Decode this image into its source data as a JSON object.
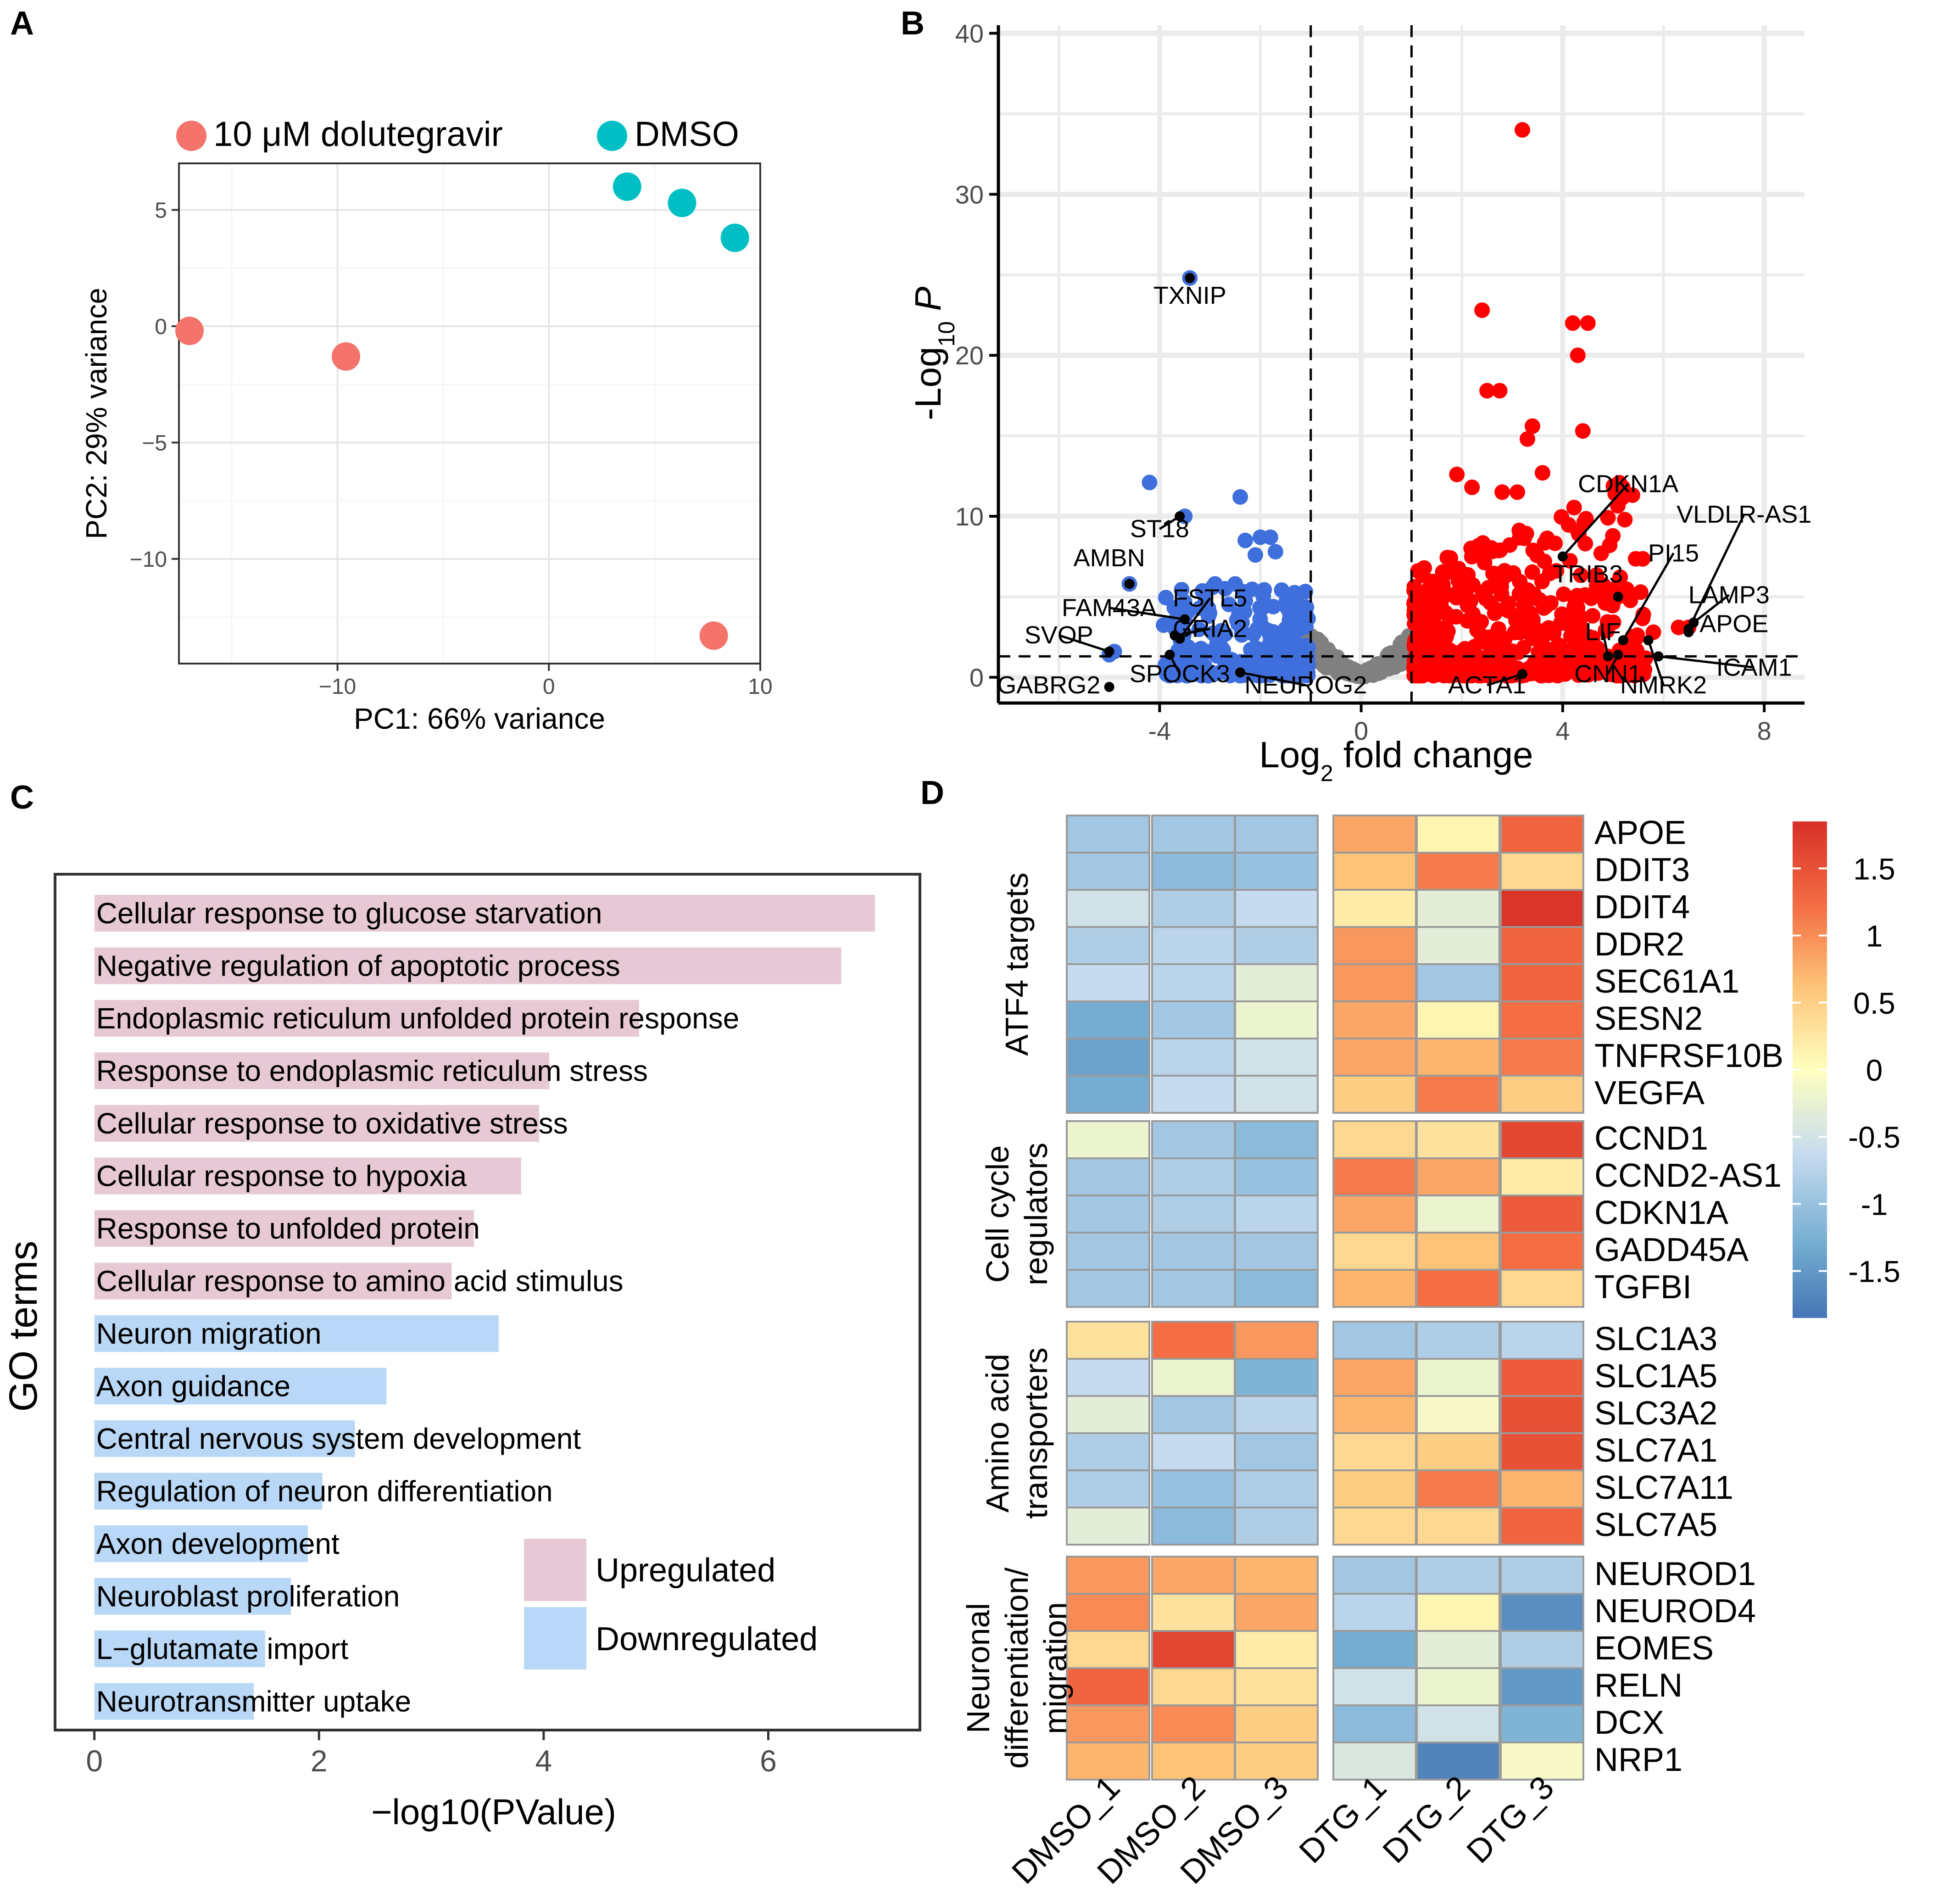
{
  "panel_labels": {
    "a": "A",
    "b": "B",
    "c": "C",
    "d": "D"
  },
  "colors": {
    "dtg": "#f4736a",
    "dmso": "#00bfc4",
    "up_point": "#ff0000",
    "down_point": "#3f6fdc",
    "ns_point": "#808080",
    "upregulated_bar": "#e6c9d4",
    "downregulated_bar": "#b9d7f6",
    "grid": "#ebebeb",
    "heat_low": "#4575b4",
    "heat_mid": "#ffffbf",
    "heat_high": "#d73027"
  },
  "chart_data": [
    {
      "panel": "A",
      "type": "scatter",
      "title": "",
      "xlabel": "PC1: 66% variance",
      "ylabel": "PC2: 29% variance",
      "xlim": [
        -17.5,
        10
      ],
      "ylim": [
        -14.5,
        7
      ],
      "xticks": [
        -10,
        0,
        10
      ],
      "yticks": [
        5,
        0,
        -5,
        -10
      ],
      "tick_labels_x": [
        "−10",
        "0",
        "10"
      ],
      "tick_labels_y": [
        "5",
        "0",
        "−5",
        "−10"
      ],
      "legend": [
        "10 μM dolutegravir",
        "DMSO"
      ],
      "legend_position": "top",
      "series": [
        {
          "name": "10 μM dolutegravir",
          "points": [
            [
              -17,
              -0.2
            ],
            [
              -9.6,
              -1.3
            ],
            [
              7.8,
              -13.3
            ]
          ]
        },
        {
          "name": "DMSO",
          "points": [
            [
              3.7,
              6
            ],
            [
              6.3,
              5.3
            ],
            [
              8.8,
              3.8
            ]
          ]
        }
      ]
    },
    {
      "panel": "B",
      "type": "scatter",
      "title": "",
      "xlabel_parts": [
        "Log",
        "2",
        " fold change"
      ],
      "ylabel_parts": [
        "-Log",
        "10",
        " P"
      ],
      "xlim": [
        -7.2,
        8.8
      ],
      "ylim": [
        -1.6,
        40.5
      ],
      "xticks": [
        -4,
        0,
        4,
        8
      ],
      "yticks": [
        0,
        10,
        20,
        30,
        40
      ],
      "tick_labels_x": [
        "-4",
        "0",
        "4",
        "8"
      ],
      "tick_labels_y": [
        "0",
        "10",
        "20",
        "30",
        "40"
      ],
      "fc_cutoff": [
        -1,
        1
      ],
      "p_cutoff": 1.3,
      "grid": true,
      "highlighted_up": [
        [
          3.2,
          34
        ],
        [
          2.4,
          22.8
        ],
        [
          4.2,
          22
        ],
        [
          4.5,
          22
        ],
        [
          4.3,
          20
        ],
        [
          2.5,
          17.8
        ],
        [
          2.75,
          17.8
        ],
        [
          3.4,
          15.6
        ],
        [
          4.4,
          15.3
        ],
        [
          3.3,
          14.8
        ],
        [
          3.6,
          12.7
        ],
        [
          1.9,
          12.6
        ],
        [
          2.2,
          11.8
        ],
        [
          2.8,
          11.5
        ],
        [
          3.1,
          11.5
        ],
        [
          5.1,
          5
        ],
        [
          5.6,
          3.9
        ],
        [
          5.8,
          2.8
        ],
        [
          6.3,
          3.1
        ],
        [
          6.5,
          3.1
        ],
        [
          4.9,
          1.3
        ],
        [
          5.3,
          1.5
        ]
      ],
      "highlighted_down": [
        [
          -3.4,
          24.8
        ],
        [
          -4.2,
          12.1
        ],
        [
          -2.4,
          11.2
        ],
        [
          -2.0,
          8.7
        ],
        [
          -1.8,
          8.7
        ],
        [
          -2.3,
          8.5
        ],
        [
          -1.7,
          7.8
        ],
        [
          -2.1,
          7.6
        ],
        [
          -3.5,
          10.0
        ],
        [
          -4.6,
          5.8
        ],
        [
          -2.9,
          5.8
        ],
        [
          -2.5,
          5.8
        ],
        [
          -2.7,
          5.5
        ],
        [
          -4.9,
          1.6
        ],
        [
          -5.0,
          1.4
        ],
        [
          -3.2,
          4.3
        ],
        [
          -3.7,
          3.5
        ]
      ],
      "labels": [
        {
          "text": "TXNIP",
          "point": [
            -3.4,
            24.8
          ],
          "label_at": [
            -3.4,
            23.2
          ],
          "arrow": false
        },
        {
          "text": "ST18",
          "point": [
            -3.6,
            10.0
          ],
          "label_at": [
            -4.0,
            8.7
          ],
          "arrow": true
        },
        {
          "text": "AMBN",
          "point": [
            -4.6,
            5.8
          ],
          "label_at": [
            -5.0,
            6.9
          ],
          "arrow": false
        },
        {
          "text": "FAM43A",
          "point": [
            -3.5,
            3.6
          ],
          "label_at": [
            -5.0,
            3.8
          ],
          "arrow": true
        },
        {
          "text": "FSTL5",
          "point": [
            -3.6,
            2.4
          ],
          "label_at": [
            -3.0,
            4.4
          ],
          "arrow": true
        },
        {
          "text": "SVOP",
          "point": [
            -5.0,
            1.6
          ],
          "label_at": [
            -6.0,
            2.1
          ],
          "arrow": true
        },
        {
          "text": "GRIA2",
          "point": [
            -3.7,
            2.6
          ],
          "label_at": [
            -3.0,
            2.5
          ],
          "arrow": true
        },
        {
          "text": "SPOCK3",
          "point": [
            -3.8,
            1.4
          ],
          "label_at": [
            -3.6,
            -0.3
          ],
          "arrow": true
        },
        {
          "text": "GABRG2",
          "point": [
            -5.0,
            -0.6
          ],
          "label_at": [
            -6.2,
            -1.0
          ],
          "arrow": false
        },
        {
          "text": "NEUROG2",
          "point": [
            -2.4,
            0.3
          ],
          "label_at": [
            -1.1,
            -1.0
          ],
          "arrow": true
        },
        {
          "text": "CDKN1A",
          "point": [
            4.0,
            7.5
          ],
          "label_at": [
            5.3,
            11.5
          ],
          "arrow": true
        },
        {
          "text": "VLDLR-AS1",
          "point": [
            6.5,
            3.0
          ],
          "label_at": [
            7.6,
            9.6
          ],
          "arrow": true
        },
        {
          "text": "PI15",
          "point": [
            5.2,
            2.3
          ],
          "label_at": [
            6.2,
            7.2
          ],
          "arrow": true
        },
        {
          "text": "TRIB3",
          "point": [
            5.1,
            5.0
          ],
          "label_at": [
            4.5,
            5.9
          ],
          "arrow": false
        },
        {
          "text": "LAMP3",
          "point": [
            6.6,
            3.4
          ],
          "label_at": [
            7.3,
            4.6
          ],
          "arrow": true
        },
        {
          "text": "LIF",
          "point": [
            4.9,
            1.3
          ],
          "label_at": [
            4.8,
            2.3
          ],
          "arrow": true
        },
        {
          "text": "APOE",
          "point": [
            6.5,
            2.8
          ],
          "label_at": [
            7.4,
            2.8
          ],
          "arrow": false
        },
        {
          "text": "ICAM1",
          "point": [
            5.9,
            1.3
          ],
          "label_at": [
            7.8,
            0.1
          ],
          "arrow": true
        },
        {
          "text": "ACTA1",
          "point": [
            3.2,
            0.2
          ],
          "label_at": [
            2.5,
            -1.0
          ],
          "arrow": true
        },
        {
          "text": "CNN1",
          "point": [
            5.1,
            1.4
          ],
          "label_at": [
            4.9,
            -0.3
          ],
          "arrow": true
        },
        {
          "text": "NMRK2",
          "point": [
            5.7,
            2.3
          ],
          "label_at": [
            6.0,
            -1.0
          ],
          "arrow": true
        }
      ]
    },
    {
      "panel": "C",
      "type": "bar",
      "orientation": "horizontal",
      "xlabel": "−log10(PValue)",
      "ylabel": "GO terms",
      "xlim": [
        -0.35,
        7.35
      ],
      "xticks": [
        0,
        2,
        4,
        6
      ],
      "tick_labels_x": [
        "0",
        "2",
        "4",
        "6"
      ],
      "legend": [
        "Upregulated",
        "Downregulated"
      ],
      "legend_position": "bottom-right",
      "categories": [
        "Cellular response to glucose starvation",
        "Negative regulation of apoptotic process",
        "Endoplasmic reticulum unfolded protein response",
        "Response to endoplasmic reticulum stress",
        "Cellular response to oxidative stress",
        "Cellular response to hypoxia",
        "Response to unfolded protein",
        "Cellular response to amino acid stimulus",
        "Neuron migration",
        "Axon guidance",
        "Central nervous system development",
        "Regulation of neuron differentiation",
        "Axon development",
        "Neuroblast proliferation",
        "L−glutamate import",
        "Neurotransmitter uptake"
      ],
      "values": [
        6.95,
        6.65,
        4.85,
        4.05,
        3.96,
        3.8,
        3.38,
        3.18,
        3.6,
        2.6,
        2.32,
        2.03,
        1.9,
        1.75,
        1.52,
        1.42
      ],
      "groups": [
        "Upregulated",
        "Upregulated",
        "Upregulated",
        "Upregulated",
        "Upregulated",
        "Upregulated",
        "Upregulated",
        "Upregulated",
        "Downregulated",
        "Downregulated",
        "Downregulated",
        "Downregulated",
        "Downregulated",
        "Downregulated",
        "Downregulated",
        "Downregulated"
      ]
    },
    {
      "panel": "D",
      "type": "heatmap",
      "columns": [
        "DMSO_1",
        "DMSO_2",
        "DMSO_3",
        "DTG_1",
        "DTG_2",
        "DTG_3"
      ],
      "colorbar_range": [
        -1.85,
        1.85
      ],
      "colorbar_ticks": [
        1.5,
        1,
        0.5,
        0,
        -0.5,
        -1,
        -1.5
      ],
      "colorbar_tick_labels": [
        "1.5",
        "1",
        "0.5",
        "0",
        "-0.5",
        "-1",
        "-1.5"
      ],
      "groups": [
        {
          "name_lines": [
            "ATF4 targets"
          ],
          "rows": [
            "APOE",
            "DDIT3",
            "DDIT4",
            "DDR2",
            "SEC61A1",
            "SESN2",
            "TNFRSF10B",
            "VEGFA"
          ],
          "values": [
            [
              -0.9,
              -0.9,
              -0.9,
              0.8,
              0.1,
              1.3
            ],
            [
              -0.9,
              -1.1,
              -1.0,
              0.6,
              1.1,
              0.4
            ],
            [
              -0.5,
              -0.8,
              -0.6,
              0.2,
              -0.3,
              1.8
            ],
            [
              -0.8,
              -0.7,
              -0.8,
              0.9,
              -0.3,
              1.3
            ],
            [
              -0.6,
              -0.7,
              -0.3,
              0.9,
              -0.9,
              1.3
            ],
            [
              -1.3,
              -0.9,
              -0.2,
              0.8,
              0.1,
              1.2
            ],
            [
              -1.4,
              -0.7,
              -0.5,
              0.8,
              0.7,
              1.1
            ],
            [
              -1.3,
              -0.6,
              -0.5,
              0.5,
              1.1,
              0.5
            ]
          ]
        },
        {
          "name_lines": [
            "Cell cycle",
            "regulators"
          ],
          "rows": [
            "CCND1",
            "CCND2-AS1",
            "CDKN1A",
            "GADD45A",
            "TGFBI"
          ],
          "values": [
            [
              -0.2,
              -0.9,
              -1.1,
              0.4,
              0.3,
              1.6
            ],
            [
              -0.9,
              -0.8,
              -1.0,
              1.1,
              0.8,
              0.2
            ],
            [
              -0.9,
              -0.8,
              -0.7,
              0.8,
              -0.2,
              1.4
            ],
            [
              -0.9,
              -0.9,
              -0.9,
              0.4,
              0.6,
              1.2
            ],
            [
              -0.9,
              -0.9,
              -1.1,
              0.7,
              1.2,
              0.4
            ]
          ]
        },
        {
          "name_lines": [
            "Amino acid",
            "transporters"
          ],
          "rows": [
            "SLC1A3",
            "SLC1A5",
            "SLC3A2",
            "SLC7A1",
            "SLC7A11",
            "SLC7A5"
          ],
          "values": [
            [
              0.3,
              1.2,
              0.9,
              -0.9,
              -0.8,
              -0.7
            ],
            [
              -0.6,
              -0.2,
              -1.2,
              0.8,
              -0.2,
              1.4
            ],
            [
              -0.3,
              -0.9,
              -0.7,
              0.7,
              -0.1,
              1.5
            ],
            [
              -0.8,
              -0.6,
              -0.9,
              0.4,
              0.5,
              1.5
            ],
            [
              -0.8,
              -1.0,
              -0.8,
              0.5,
              1.1,
              0.7
            ],
            [
              -0.3,
              -1.1,
              -0.8,
              0.4,
              0.4,
              1.3
            ]
          ]
        },
        {
          "name_lines": [
            "Neuronal",
            "differentiation/",
            "migration"
          ],
          "rows": [
            "NEUROD1",
            "NEUROD4",
            "EOMES",
            "RELN",
            "DCX",
            "NRP1"
          ],
          "values": [
            [
              0.9,
              0.8,
              0.7,
              -0.9,
              -0.8,
              -0.8
            ],
            [
              1.0,
              0.3,
              0.8,
              -0.7,
              0.1,
              -1.6
            ],
            [
              0.4,
              1.6,
              0.2,
              -1.3,
              -0.3,
              -0.8
            ],
            [
              1.3,
              0.4,
              0.3,
              -0.5,
              -0.2,
              -1.5
            ],
            [
              0.9,
              1.0,
              0.5,
              -1.1,
              -0.5,
              -1.2
            ],
            [
              0.7,
              0.6,
              0.5,
              -0.4,
              -1.7,
              -0.1
            ]
          ]
        }
      ]
    }
  ]
}
